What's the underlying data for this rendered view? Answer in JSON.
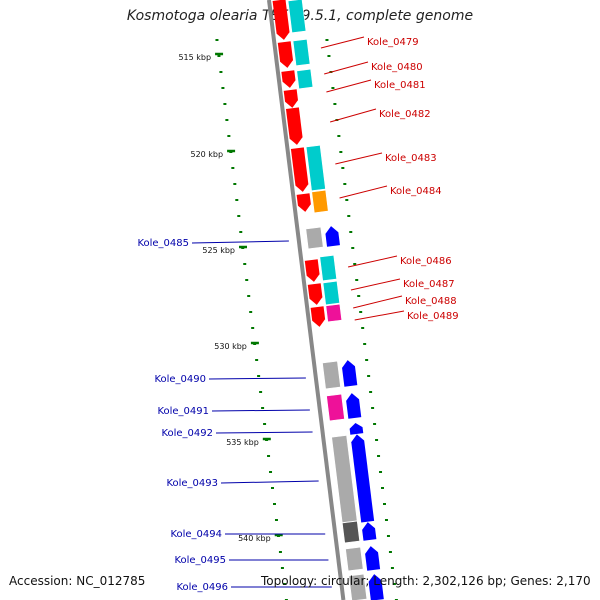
{
  "header": {
    "title": "Kosmotoga olearia TBF 19.5.1, complete genome"
  },
  "footer": {
    "accession": "Accession: NC_012785",
    "stats": "Topology: circular; Length: 2,302,126 bp; Genes: 2,170"
  },
  "colors": {
    "forward_strand": "#ff0000",
    "reverse_strand": "#0000ff",
    "forward_label": "#cc0000",
    "reverse_label": "#0000aa",
    "cog_cyan": "#00cccc",
    "cog_orange": "#ff9900",
    "cog_magenta": "#ee1199",
    "cog_gray": "#aaaaaa",
    "cog_darkgray": "#555555",
    "kbp_tick": "#007700",
    "backbone": "#888888"
  },
  "kbp_ticks": [
    "515 kbp",
    "520 kbp",
    "525 kbp",
    "530 kbp",
    "535 kbp",
    "540 kbp"
  ],
  "genes_forward": [
    {
      "id": "Kole_0479",
      "cog": "cog_cyan"
    },
    {
      "id": "Kole_0480",
      "cog": "cog_cyan"
    },
    {
      "id": "Kole_0481",
      "cog": "cog_cyan"
    },
    {
      "id": "Kole_0482",
      "cog": ""
    },
    {
      "id": "Kole_0483",
      "cog": "cog_cyan"
    },
    {
      "id": "Kole_0484",
      "cog": "cog_orange"
    },
    {
      "id": "Kole_0486",
      "cog": "cog_cyan"
    },
    {
      "id": "Kole_0487",
      "cog": "cog_cyan"
    },
    {
      "id": "Kole_0488",
      "cog": "cog_magenta"
    },
    {
      "id": "Kole_0489",
      "cog": ""
    }
  ],
  "genes_reverse": [
    {
      "id": "Kole_0485",
      "cog": "cog_gray"
    },
    {
      "id": "Kole_0490",
      "cog": "cog_gray"
    },
    {
      "id": "Kole_0491",
      "cog": "cog_magenta"
    },
    {
      "id": "Kole_0492",
      "cog": ""
    },
    {
      "id": "Kole_0493",
      "cog": "cog_gray"
    },
    {
      "id": "Kole_0494",
      "cog": "cog_darkgray"
    },
    {
      "id": "Kole_0495",
      "cog": "cog_gray"
    },
    {
      "id": "Kole_0496",
      "cog": "cog_gray"
    }
  ]
}
